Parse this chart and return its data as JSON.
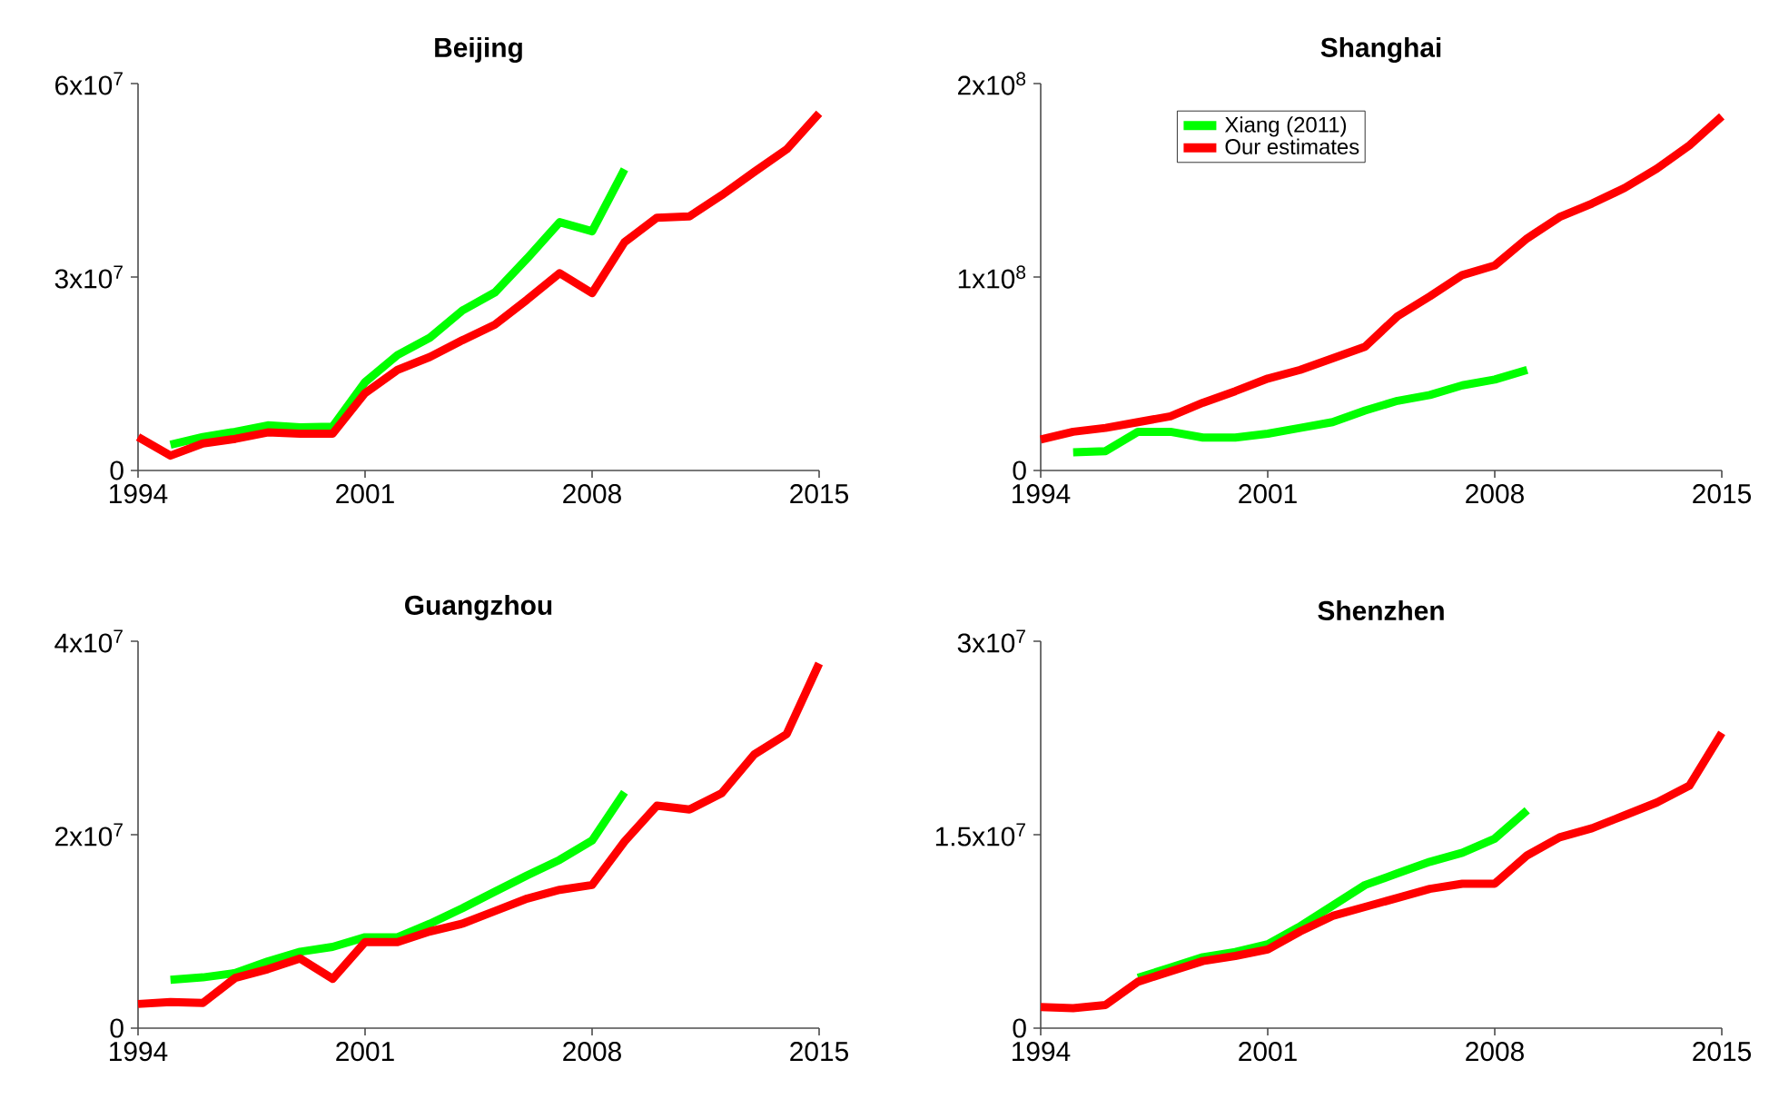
{
  "chart_data": [
    {
      "type": "line",
      "title": "Beijing",
      "xlim": [
        1994,
        2015
      ],
      "xticks": [
        1994,
        2001,
        2008,
        2015
      ],
      "ylim": [
        0,
        60000000
      ],
      "yticks": [
        0,
        {
          "value": 30000000,
          "label": "3x10$^{7}$"
        },
        {
          "value": 60000000,
          "label": "6x10$^{7}$"
        }
      ],
      "legend": false,
      "series": [
        {
          "color": "#00ff00",
          "x": [
            1995,
            1996,
            1997,
            1998,
            1999,
            2000,
            2001,
            2002,
            2003,
            2004,
            2005,
            2006,
            2007,
            2008,
            2009
          ],
          "values": [
            4000000,
            5200000,
            6000000,
            7000000,
            6700000,
            6800000,
            13700000,
            17900000,
            20600000,
            24800000,
            27600000,
            32900000,
            38500000,
            37100000,
            46700000
          ]
        },
        {
          "color": "#ff0000",
          "x": [
            1994,
            1995,
            1996,
            1997,
            1998,
            1999,
            2000,
            2001,
            2002,
            2003,
            2004,
            2005,
            2006,
            2007,
            2008,
            2009,
            2010,
            2011,
            2012,
            2013,
            2014,
            2015
          ],
          "values": [
            5200000,
            2300000,
            4200000,
            4900000,
            5900000,
            5700000,
            5700000,
            12000000,
            15600000,
            17600000,
            20200000,
            22600000,
            26500000,
            30600000,
            27500000,
            35400000,
            39200000,
            39400000,
            42700000,
            46300000,
            49800000,
            55400000
          ]
        }
      ]
    },
    {
      "type": "line",
      "title": "Shanghai",
      "xlim": [
        1994,
        2015
      ],
      "xticks": [
        1994,
        2001,
        2008,
        2015
      ],
      "ylim": [
        0,
        200000000
      ],
      "yticks": [
        0,
        {
          "value": 100000000,
          "label": "1x10$^{8}$"
        },
        {
          "value": 200000000,
          "label": "2x10$^{8}$"
        }
      ],
      "legend": "top left",
      "series": [
        {
          "name": "Xiang (2011)",
          "color": "#00ff00",
          "x": [
            1995,
            1996,
            1997,
            1998,
            1999,
            2000,
            2001,
            2002,
            2003,
            2004,
            2005,
            2006,
            2007,
            2008,
            2009
          ],
          "values": [
            9400000,
            10000000,
            20000000,
            20000000,
            17000000,
            17000000,
            19000000,
            22000000,
            25000000,
            31000000,
            36000000,
            39000000,
            44000000,
            47000000,
            52000000
          ]
        },
        {
          "name": "Our estimates",
          "color": "#ff0000",
          "x": [
            1994,
            1995,
            1996,
            1997,
            1998,
            1999,
            2000,
            2001,
            2002,
            2003,
            2004,
            2005,
            2006,
            2007,
            2008,
            2009,
            2010,
            2011,
            2012,
            2013,
            2014,
            2015
          ],
          "values": [
            16000000,
            20000000,
            22000000,
            25000000,
            28000000,
            35000000,
            41000000,
            47500000,
            52000000,
            58000000,
            64000000,
            79700000,
            90000000,
            101000000,
            106000000,
            120000000,
            131000000,
            138000000,
            146000000,
            156000000,
            168000000,
            183000000
          ]
        }
      ]
    },
    {
      "type": "line",
      "title": "Guangzhou",
      "xlim": [
        1994,
        2015
      ],
      "xticks": [
        1994,
        2001,
        2008,
        2015
      ],
      "ylim": [
        0,
        40000000
      ],
      "yticks": [
        0,
        {
          "value": 20000000,
          "label": "2x10$^{7}$"
        },
        {
          "value": 40000000,
          "label": "4x10$^{7}$"
        }
      ],
      "legend": false,
      "series": [
        {
          "color": "#00ff00",
          "x": [
            1995,
            1996,
            1997,
            1998,
            1999,
            2000,
            2001,
            2002,
            2003,
            2004,
            2005,
            2006,
            2007,
            2008,
            2009
          ],
          "values": [
            5000000,
            5250000,
            5700000,
            6900000,
            7900000,
            8400000,
            9400000,
            9400000,
            10800000,
            12400000,
            14100000,
            15800000,
            17400000,
            19400000,
            24400000
          ]
        },
        {
          "color": "#ff0000",
          "x": [
            1994,
            1995,
            1996,
            1997,
            1998,
            1999,
            2000,
            2001,
            2002,
            2003,
            2004,
            2005,
            2006,
            2007,
            2008,
            2009,
            2010,
            2011,
            2012,
            2013,
            2014,
            2015
          ],
          "values": [
            2500000,
            2700000,
            2600000,
            5200000,
            6100000,
            7200000,
            5100000,
            8900000,
            8900000,
            10000000,
            10800000,
            12100000,
            13400000,
            14300000,
            14800000,
            19300000,
            23000000,
            22600000,
            24300000,
            28300000,
            30400000,
            37700000
          ]
        }
      ]
    },
    {
      "type": "line",
      "title": "Shenzhen",
      "xlim": [
        1994,
        2015
      ],
      "xticks": [
        1994,
        2001,
        2008,
        2015
      ],
      "ylim": [
        0,
        30000000
      ],
      "yticks": [
        0,
        {
          "value": 15000000,
          "label": "1.5x10$^{7}$"
        },
        {
          "value": 30000000,
          "label": "3x10$^{7}$"
        }
      ],
      "legend": false,
      "series": [
        {
          "color": "#00ff00",
          "x": [
            1997,
            1998,
            1999,
            2000,
            2001,
            2002,
            2003,
            2004,
            2005,
            2006,
            2007,
            2008,
            2009
          ],
          "values": [
            3900000,
            4700000,
            5500000,
            5900000,
            6500000,
            7900000,
            9500000,
            11100000,
            12000000,
            12900000,
            13600000,
            14700000,
            16900000
          ]
        },
        {
          "color": "#ff0000",
          "x": [
            1994,
            1995,
            1996,
            1997,
            1998,
            1999,
            2000,
            2001,
            2002,
            2003,
            2004,
            2005,
            2006,
            2007,
            2008,
            2009,
            2010,
            2011,
            2012,
            2013,
            2014,
            2015
          ],
          "values": [
            1640000,
            1550000,
            1800000,
            3600000,
            4400000,
            5200000,
            5600000,
            6100000,
            7500000,
            8700000,
            9400000,
            10100000,
            10800000,
            11200000,
            11200000,
            13400000,
            14800000,
            15500000,
            16500000,
            17500000,
            18800000,
            22900000
          ]
        }
      ]
    }
  ]
}
